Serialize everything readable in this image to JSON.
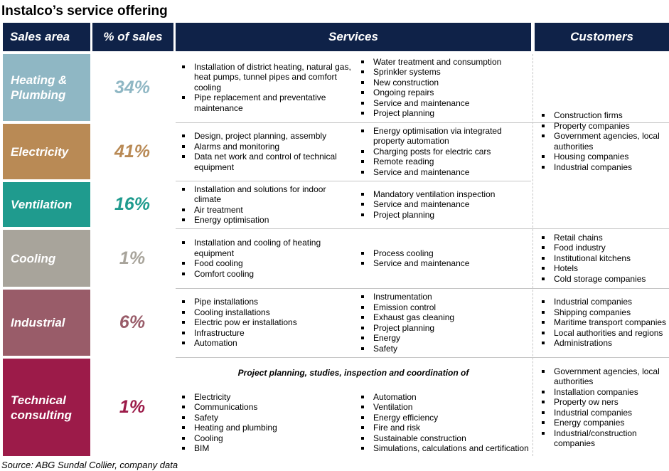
{
  "title": "Instalco’s service offering",
  "headers": {
    "sales_area": "Sales area",
    "pct_sales": "% of sales",
    "services": "Services",
    "customers": "Customers"
  },
  "rows": [
    {
      "area": "Heating & Plumbing",
      "pct": "34%",
      "band_color": "#8fb7c4",
      "pct_color": "#8fb7c4",
      "services_left": [
        "Installation of district heating, natural gas, heat pumps, tunnel pipes and comfort cooling",
        "Pipe replacement and preventative maintenance"
      ],
      "services_right": [
        "Water treatment and consumption",
        "Sprinkler systems",
        "New construction",
        "Ongoing repairs",
        "Service and maintenance",
        "Project planning"
      ]
    },
    {
      "area": "Electricity",
      "pct": "41%",
      "band_color": "#b98a55",
      "pct_color": "#b98a55",
      "services_left": [
        "Design, project planning, assembly",
        "Alarms and monitoring",
        "Data net work and control of technical equipment"
      ],
      "services_right": [
        "Energy optimisation via integrated property automation",
        "Charging posts for electric cars",
        "Remote reading",
        "Service and maintenance"
      ]
    },
    {
      "area": "Ventilation",
      "pct": "16%",
      "band_color": "#1f9b8e",
      "pct_color": "#1f9b8e",
      "services_left": [
        "Installation and solutions for indoor climate",
        "Air treatment",
        "Energy optimisation"
      ],
      "services_right": [
        "Mandatory ventilation inspection",
        "Service and maintenance",
        "Project planning"
      ]
    },
    {
      "area": "Cooling",
      "pct": "1%",
      "band_color": "#a8a49b",
      "pct_color": "#a8a49b",
      "services_left": [
        "Installation and cooling of heating equipment",
        "Food cooling",
        "Comfort cooling"
      ],
      "services_right": [
        "Process cooling",
        "Service and maintenance"
      ]
    },
    {
      "area": "Industrial",
      "pct": "6%",
      "band_color": "#995c69",
      "pct_color": "#995c69",
      "services_left": [
        "Pipe installations",
        "Cooling installations",
        "Electric pow er installations",
        "Infrastructure",
        "Automation"
      ],
      "services_right": [
        "Instrumentation",
        "Emission control",
        "Exhaust gas cleaning",
        "Project planning",
        "Energy",
        "Safety"
      ]
    },
    {
      "area": "Technical consulting",
      "pct": "1%",
      "band_color": "#9c1b49",
      "pct_color": "#9c1b49",
      "services_heading": "Project planning, studies, inspection and coordination of",
      "services_left": [
        "Electricity",
        "Communications",
        "Safety",
        "Heating and plumbing",
        "Cooling",
        "BIM"
      ],
      "services_right": [
        "Automation",
        "Ventilation",
        "Energy efficiency",
        "Fire and risk",
        "Sustainable construction",
        "Simulations,  calculations and certification"
      ]
    }
  ],
  "customers": [
    [
      "Construction firms",
      "Property companies",
      "Government agencies, local authorities",
      "Housing companies",
      "Industrial companies"
    ],
    [
      "Retail chains",
      "Food industry",
      "Institutional kitchens",
      "Hotels",
      "Cold storage companies"
    ],
    [
      "Industrial companies",
      "Shipping companies",
      "Maritime transport companies",
      "Local authorities and regions",
      "Administrations"
    ],
    [
      "Government agencies, local authorities",
      "Installation companies",
      "Property ow ners",
      "Industrial companies",
      "Energy companies",
      "Industrial/construction companies"
    ]
  ],
  "source": "Source: ABG Sundal Collier, company data"
}
